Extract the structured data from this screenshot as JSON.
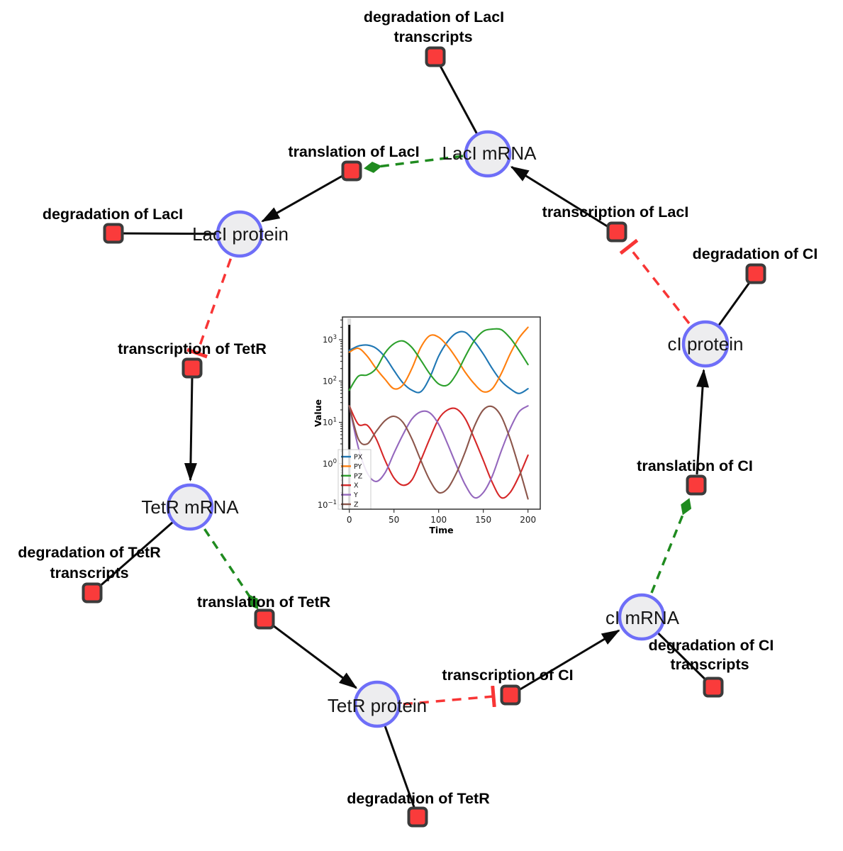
{
  "colors": {
    "species_fill": "#ededef",
    "species_border": "#6e6ef8",
    "reaction_fill": "#fa3b3b",
    "reaction_border": "#3b3b3b",
    "edge": "#0a0a0a",
    "activation": "#1f8b1f",
    "inhibition": "#f83535"
  },
  "diagram": {
    "species": [
      {
        "id": "laci-mrna",
        "label": "LacI mRNA"
      },
      {
        "id": "laci-protein",
        "label": "LacI protein"
      },
      {
        "id": "tetr-mrna",
        "label": "TetR mRNA"
      },
      {
        "id": "tetr-protein",
        "label": "TetR protein"
      },
      {
        "id": "ci-mrna",
        "label": "cI mRNA"
      },
      {
        "id": "ci-protein",
        "label": "cI protein"
      }
    ],
    "reactions": [
      {
        "id": "deg-laci-transcripts",
        "lines": [
          "degradation of LacI",
          "transcripts"
        ]
      },
      {
        "id": "translation-laci",
        "lines": [
          "translation of LacI"
        ]
      },
      {
        "id": "deg-laci",
        "lines": [
          "degradation of LacI"
        ]
      },
      {
        "id": "transcription-laci",
        "lines": [
          "transcription of LacI"
        ]
      },
      {
        "id": "deg-ci",
        "lines": [
          "degradation of CI"
        ]
      },
      {
        "id": "transcription-tetr",
        "lines": [
          "transcription of TetR"
        ]
      },
      {
        "id": "translation-ci",
        "lines": [
          "translation of CI"
        ]
      },
      {
        "id": "deg-tetr-transcripts",
        "lines": [
          "degradation of TetR",
          "transcripts"
        ]
      },
      {
        "id": "translation-tetr",
        "lines": [
          "translation of TetR"
        ]
      },
      {
        "id": "transcription-ci",
        "lines": [
          "transcription of CI"
        ]
      },
      {
        "id": "deg-ci-transcripts",
        "lines": [
          "degradation of CI",
          "transcripts"
        ]
      },
      {
        "id": "deg-tetr",
        "lines": [
          "degradation of TetR"
        ]
      }
    ],
    "edges": [
      {
        "source": "LacI mRNA",
        "target": "degradation of LacI transcripts",
        "type": "reactant"
      },
      {
        "source": "LacI mRNA",
        "target": "translation of LacI",
        "type": "modifier"
      },
      {
        "source": "translation of LacI",
        "target": "LacI protein",
        "type": "product"
      },
      {
        "source": "LacI protein",
        "target": "degradation of LacI",
        "type": "reactant"
      },
      {
        "source": "LacI protein",
        "target": "transcription of TetR",
        "type": "inhibition"
      },
      {
        "source": "transcription of TetR",
        "target": "TetR mRNA",
        "type": "product"
      },
      {
        "source": "TetR mRNA",
        "target": "degradation of TetR transcripts",
        "type": "reactant"
      },
      {
        "source": "TetR mRNA",
        "target": "translation of TetR",
        "type": "modifier"
      },
      {
        "source": "translation of TetR",
        "target": "TetR protein",
        "type": "product"
      },
      {
        "source": "TetR protein",
        "target": "degradation of TetR",
        "type": "reactant"
      },
      {
        "source": "TetR protein",
        "target": "transcription of CI",
        "type": "inhibition"
      },
      {
        "source": "transcription of CI",
        "target": "cI mRNA",
        "type": "product"
      },
      {
        "source": "cI mRNA",
        "target": "degradation of CI transcripts",
        "type": "reactant"
      },
      {
        "source": "cI mRNA",
        "target": "translation of CI",
        "type": "modifier"
      },
      {
        "source": "translation of CI",
        "target": "cI protein",
        "type": "product"
      },
      {
        "source": "cI protein",
        "target": "degradation of CI",
        "type": "reactant"
      },
      {
        "source": "cI protein",
        "target": "transcription of LacI",
        "type": "inhibition"
      },
      {
        "source": "transcription of LacI",
        "target": "LacI mRNA",
        "type": "product"
      }
    ]
  },
  "chart_data": {
    "type": "line",
    "title": "",
    "xlabel": "Time",
    "ylabel": "Value",
    "y_scale": "log",
    "x_ticks": [
      0,
      50,
      100,
      150,
      200
    ],
    "y_tick_exponents": [
      -1,
      0,
      1,
      2,
      3
    ],
    "xlim": [
      -10,
      210
    ],
    "ylim_exponents": [
      -1.1,
      3.55
    ],
    "event_line_x": 0,
    "grid": false,
    "legend_position": "lower left",
    "x": [
      0,
      10,
      20,
      30,
      40,
      50,
      60,
      70,
      80,
      90,
      100,
      110,
      120,
      130,
      140,
      150,
      160,
      170,
      180,
      190,
      200
    ],
    "series": [
      {
        "name": "PX",
        "color": "#1f77b4",
        "values": [
          550,
          700,
          740,
          620,
          380,
          180,
          90,
          60,
          55,
          120,
          400,
          900,
          1450,
          1500,
          900,
          450,
          200,
          100,
          65,
          50,
          65
        ]
      },
      {
        "name": "PY",
        "color": "#ff7f0e",
        "values": [
          500,
          620,
          400,
          200,
          110,
          65,
          80,
          200,
          650,
          1250,
          1150,
          700,
          350,
          160,
          85,
          55,
          65,
          150,
          450,
          1100,
          2000
        ]
      },
      {
        "name": "PZ",
        "color": "#2ca02c",
        "values": [
          60,
          130,
          140,
          200,
          480,
          800,
          930,
          650,
          320,
          150,
          85,
          80,
          150,
          400,
          950,
          1600,
          1800,
          1750,
          1100,
          550,
          250
        ]
      },
      {
        "name": "X",
        "color": "#d62728",
        "values": [
          25,
          9,
          8.5,
          4,
          1.2,
          0.45,
          0.3,
          0.4,
          1.2,
          4,
          12,
          20,
          21,
          12,
          4,
          1.2,
          0.35,
          0.15,
          0.2,
          0.5,
          1.6
        ]
      },
      {
        "name": "Y",
        "color": "#9467bd",
        "values": [
          25,
          2.5,
          0.6,
          0.37,
          0.6,
          1.8,
          5,
          12,
          18,
          17,
          9,
          3,
          0.9,
          0.3,
          0.15,
          0.2,
          0.5,
          2,
          7,
          18,
          25
        ]
      },
      {
        "name": "Z",
        "color": "#8c564b",
        "values": [
          25,
          4,
          3,
          6,
          11,
          14,
          10,
          4,
          1.2,
          0.4,
          0.2,
          0.25,
          0.6,
          2,
          8,
          20,
          24,
          14,
          4,
          0.8,
          0.14
        ]
      }
    ]
  }
}
